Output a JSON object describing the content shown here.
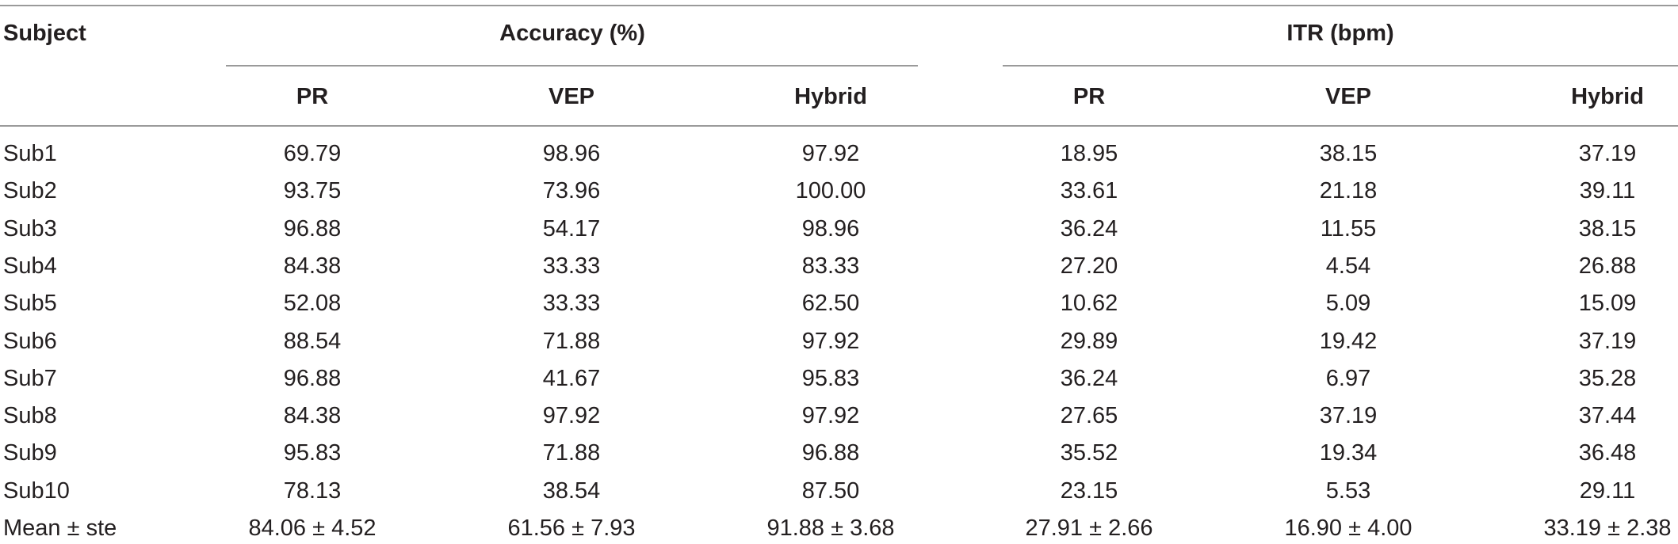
{
  "table": {
    "header": {
      "subject": "Subject",
      "accuracy_group": "Accuracy (%)",
      "itr_group": "ITR (bpm)",
      "columns": [
        "PR",
        "VEP",
        "Hybrid",
        "PR",
        "VEP",
        "Hybrid"
      ]
    },
    "rows": [
      {
        "subject": "Sub1",
        "values": [
          "69.79",
          "98.96",
          "97.92",
          "18.95",
          "38.15",
          "37.19"
        ]
      },
      {
        "subject": "Sub2",
        "values": [
          "93.75",
          "73.96",
          "100.00",
          "33.61",
          "21.18",
          "39.11"
        ]
      },
      {
        "subject": "Sub3",
        "values": [
          "96.88",
          "54.17",
          "98.96",
          "36.24",
          "11.55",
          "38.15"
        ]
      },
      {
        "subject": "Sub4",
        "values": [
          "84.38",
          "33.33",
          "83.33",
          "27.20",
          "4.54",
          "26.88"
        ]
      },
      {
        "subject": "Sub5",
        "values": [
          "52.08",
          "33.33",
          "62.50",
          "10.62",
          "5.09",
          "15.09"
        ]
      },
      {
        "subject": "Sub6",
        "values": [
          "88.54",
          "71.88",
          "97.92",
          "29.89",
          "19.42",
          "37.19"
        ]
      },
      {
        "subject": "Sub7",
        "values": [
          "96.88",
          "41.67",
          "95.83",
          "36.24",
          "6.97",
          "35.28"
        ]
      },
      {
        "subject": "Sub8",
        "values": [
          "84.38",
          "97.92",
          "97.92",
          "27.65",
          "37.19",
          "37.44"
        ]
      },
      {
        "subject": "Sub9",
        "values": [
          "95.83",
          "71.88",
          "96.88",
          "35.52",
          "19.34",
          "36.48"
        ]
      },
      {
        "subject": "Sub10",
        "values": [
          "78.13",
          "38.54",
          "87.50",
          "23.15",
          "5.53",
          "29.11"
        ]
      },
      {
        "subject": "Mean ± ste",
        "values": [
          "84.06 ± 4.52",
          "61.56 ± 7.93",
          "91.88 ± 3.68",
          "27.91 ± 2.66",
          "16.90 ± 4.00",
          "33.19 ± 2.38"
        ]
      }
    ]
  }
}
